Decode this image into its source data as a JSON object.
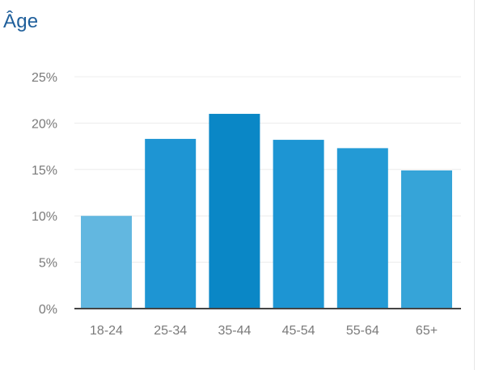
{
  "title": "Âge",
  "chart_data": {
    "type": "bar",
    "title": "Âge",
    "categories": [
      "18-24",
      "25-34",
      "35-44",
      "45-54",
      "55-64",
      "65+"
    ],
    "values": [
      10.0,
      18.3,
      21.0,
      18.2,
      17.3,
      14.9
    ],
    "ylim": [
      0,
      25
    ],
    "ytick_values": [
      0,
      5,
      10,
      15,
      20,
      25
    ],
    "ytick_labels": [
      "0%",
      "5%",
      "10%",
      "15%",
      "20%",
      "25%"
    ],
    "grid": true,
    "bar_colors": [
      "#62b7e0",
      "#1e95d3",
      "#0a87c6",
      "#1d95d3",
      "#239ad5",
      "#36a4d8"
    ],
    "grid_color": "#ececec",
    "axis_color": "#444444"
  }
}
